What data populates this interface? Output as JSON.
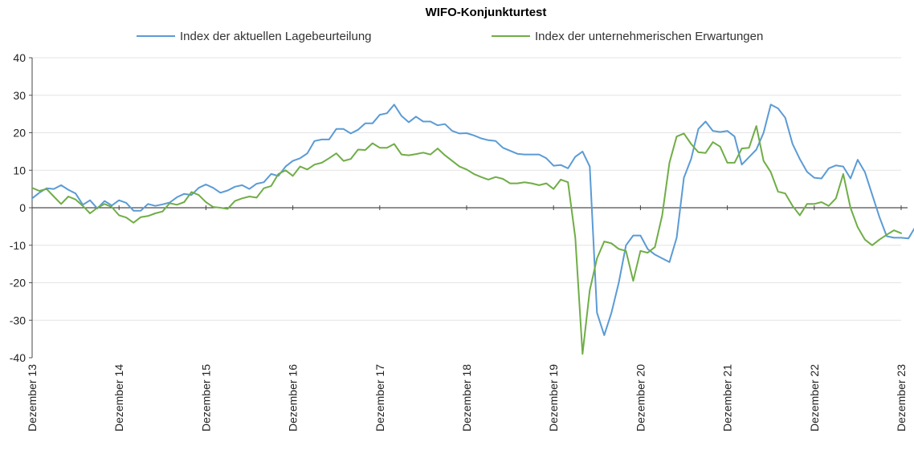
{
  "chart_data": {
    "type": "line",
    "title": "WIFO-Konjunkturtest",
    "xlabel": "",
    "ylabel": "",
    "ylim": [
      -40,
      40
    ],
    "yticks": [
      40,
      30,
      20,
      10,
      0,
      -10,
      -20,
      -30,
      -40
    ],
    "x_tick_labels": [
      "Dezember 13",
      "Dezember 14",
      "Dezember 15",
      "Dezember 16",
      "Dezember 17",
      "Dezember 18",
      "Dezember 19",
      "Dezember 20",
      "Dezember 21",
      "Dezember 22",
      "Dezember 23"
    ],
    "grid": "horizontal",
    "legend": "top",
    "x_start": "Dezember 13",
    "months": 121,
    "series": [
      {
        "name": "Index der aktuellen Lagebeurteilung",
        "color": "#5b9bd5",
        "values": [
          2.5,
          4,
          5.2,
          5,
          6,
          4.8,
          3.8,
          0.8,
          2,
          -0.2,
          1.8,
          0.6,
          2,
          1.3,
          -0.8,
          -0.8,
          1,
          0.5,
          0.9,
          1.4,
          2.8,
          3.7,
          3.4,
          5.3,
          6.2,
          5.3,
          4,
          4.6,
          5.6,
          6,
          5,
          6.4,
          6.8,
          9,
          8.5,
          11,
          12.5,
          13.2,
          14.5,
          17.8,
          18.2,
          18.2,
          21,
          21,
          19.8,
          20.8,
          22.5,
          22.5,
          24.8,
          25.2,
          27.5,
          24.5,
          22.8,
          24.3,
          23,
          23,
          22,
          22.3,
          20.5,
          19.8,
          19.9,
          19.3,
          18.5,
          18,
          17.8,
          16,
          15.2,
          14.4,
          14.2,
          14.2,
          14.2,
          13.2,
          11.2,
          11.4,
          10.5,
          13.6,
          15,
          11,
          -28,
          -34,
          -28,
          -20,
          -10,
          -7.4,
          -7.4,
          -11,
          -12.5,
          -13.5,
          -14.5,
          -8,
          8,
          13,
          21,
          23,
          20.5,
          20.2,
          20.5,
          19,
          11.5,
          13.5,
          15.5,
          20,
          27.5,
          26.5,
          24,
          17,
          13,
          9.6,
          8,
          7.8,
          10.5,
          11.3,
          11,
          7.8,
          12.8,
          9.5,
          3.5,
          -2.5,
          -7.6,
          -8,
          -8,
          -8.2,
          -5
        ]
      },
      {
        "name": "Index der unternehmerischen Erwartungen",
        "color": "#70ad47",
        "values": [
          5.3,
          4.5,
          5,
          3,
          1,
          3,
          2.2,
          0.5,
          -1.5,
          0,
          1,
          0.2,
          -2,
          -2.6,
          -4,
          -2.5,
          -2.2,
          -1.5,
          -1,
          1.2,
          0.8,
          1.5,
          4.2,
          3.4,
          1.5,
          0.2,
          0,
          -0.3,
          1.8,
          2.5,
          3,
          2.7,
          5.2,
          5.8,
          9,
          10,
          8.5,
          11,
          10.2,
          11.5,
          12,
          13.2,
          14.5,
          12.5,
          13,
          15.5,
          15.4,
          17.2,
          16,
          16,
          17,
          14.2,
          14,
          14.3,
          14.7,
          14.2,
          15.8,
          14,
          12.5,
          11,
          10.2,
          9,
          8.2,
          7.5,
          8.2,
          7.7,
          6.5,
          6.5,
          6.8,
          6.5,
          6,
          6.5,
          5,
          7.5,
          6.8,
          -8,
          -39,
          -22,
          -13.5,
          -9,
          -9.5,
          -11,
          -11.5,
          -19.5,
          -11.5,
          -12,
          -10.5,
          -2,
          12,
          19,
          19.8,
          17,
          14.8,
          14.6,
          17.5,
          16.3,
          12,
          12,
          15.8,
          16,
          21.8,
          12.5,
          9.5,
          4.3,
          3.8,
          0.5,
          -2,
          1,
          1,
          1.5,
          0.5,
          2.5,
          9,
          0,
          -5.2,
          -8.5,
          -10,
          -8.5,
          -7.2,
          -6,
          -6.8
        ]
      }
    ]
  }
}
